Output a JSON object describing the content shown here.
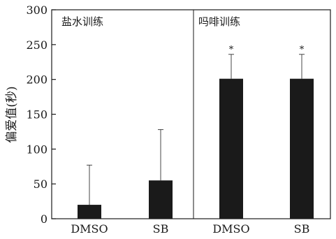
{
  "chart_data": {
    "type": "bar",
    "title": "",
    "xlabel": "",
    "ylabel": "偏爱值(秒)",
    "ylim": [
      0,
      300
    ],
    "y_ticks": [
      0,
      50,
      100,
      150,
      200,
      250,
      300
    ],
    "grid": false,
    "legend": "none",
    "bar_color": "#1a1a1a",
    "panels": [
      {
        "label": "盐水训练",
        "categories": [
          "DMSO",
          "SB"
        ],
        "values": [
          20,
          55
        ],
        "error_upper": [
          77,
          128
        ],
        "significance": [
          "",
          ""
        ]
      },
      {
        "label": "吗啡训练",
        "categories": [
          "DMSO",
          "SB"
        ],
        "values": [
          201,
          201
        ],
        "error_upper": [
          236,
          236
        ],
        "significance": [
          "*",
          "*"
        ]
      }
    ]
  }
}
